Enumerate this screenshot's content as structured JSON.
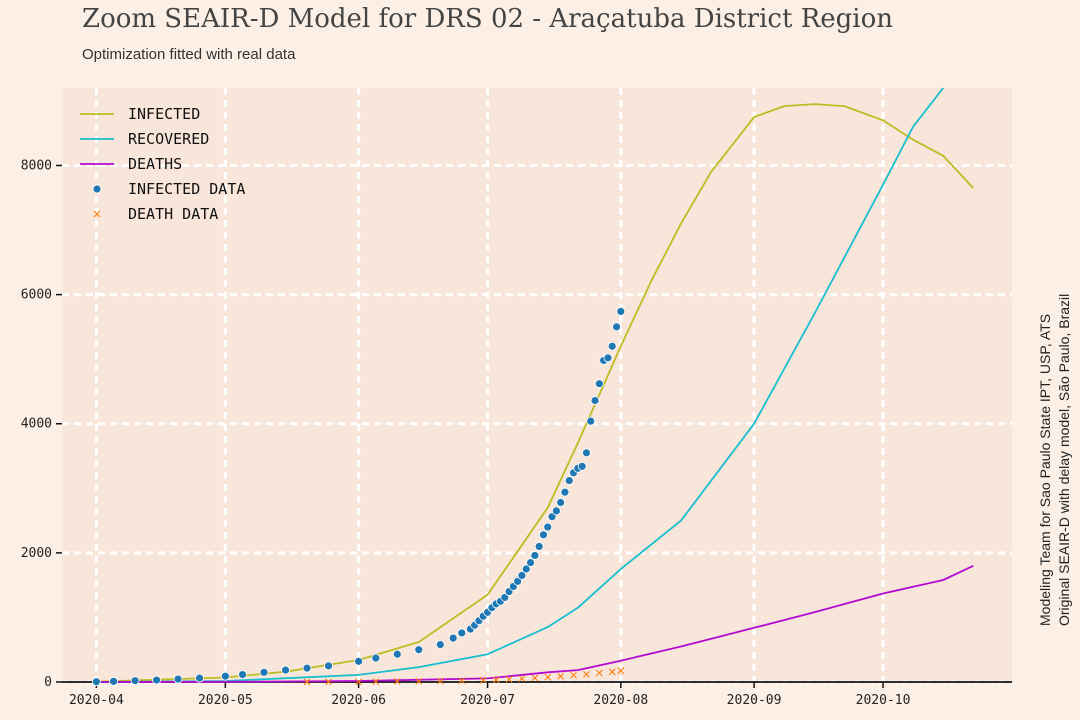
{
  "title": "Zoom SEAIR-D Model for DRS 02 - Araçatuba District Region",
  "subtitle": "Optimization fitted with real data",
  "side_note": {
    "line1": "Modeling Team for Sao Paulo State IPT, USP, ATS",
    "line2": "Original SEAIR-D with delay model, São Paulo, Brazil"
  },
  "colors": {
    "background": "#fcf0e6",
    "plot_background": "#f9e6da",
    "infected": "#bcbd22",
    "recovered": "#17becf",
    "deaths": "#b40bd1",
    "infected_data": "#1f77b4",
    "death_data": "#ff7f0e"
  },
  "chart_data": {
    "type": "line",
    "title": "Zoom SEAIR-D Model for DRS 02 - Araçatuba District Region",
    "xlabel": "",
    "ylabel": "",
    "xlim": [
      "2020-03-24",
      "2020-10-31"
    ],
    "ylim": [
      0,
      9200
    ],
    "grid": true,
    "legend_position": "top-left",
    "x_ticks": [
      "2020-04",
      "2020-05",
      "2020-06",
      "2020-07",
      "2020-08",
      "2020-09",
      "2020-10"
    ],
    "x_tick_dates": [
      "2020-04-01",
      "2020-05-01",
      "2020-06-01",
      "2020-07-01",
      "2020-08-01",
      "2020-09-01",
      "2020-10-01"
    ],
    "y_ticks": [
      0,
      2000,
      4000,
      6000,
      8000
    ],
    "series": [
      {
        "name": "Infected",
        "kind": "line",
        "color_key": "infected",
        "points": [
          [
            "2020-04-01",
            5
          ],
          [
            "2020-05-01",
            70
          ],
          [
            "2020-05-15",
            160
          ],
          [
            "2020-06-01",
            340
          ],
          [
            "2020-06-15",
            620
          ],
          [
            "2020-07-01",
            1350
          ],
          [
            "2020-07-15",
            2700
          ],
          [
            "2020-07-22",
            3700
          ],
          [
            "2020-08-01",
            5200
          ],
          [
            "2020-08-08",
            6200
          ],
          [
            "2020-08-15",
            7100
          ],
          [
            "2020-08-22",
            7900
          ],
          [
            "2020-09-01",
            8750
          ],
          [
            "2020-09-08",
            8920
          ],
          [
            "2020-09-15",
            8950
          ],
          [
            "2020-09-22",
            8920
          ],
          [
            "2020-10-01",
            8700
          ],
          [
            "2020-10-08",
            8400
          ],
          [
            "2020-10-15",
            8150
          ],
          [
            "2020-10-22",
            7650
          ]
        ]
      },
      {
        "name": "Recovered",
        "kind": "line",
        "color_key": "recovered",
        "points": [
          [
            "2020-04-01",
            0
          ],
          [
            "2020-05-01",
            15
          ],
          [
            "2020-06-01",
            110
          ],
          [
            "2020-06-15",
            230
          ],
          [
            "2020-07-01",
            430
          ],
          [
            "2020-07-15",
            850
          ],
          [
            "2020-07-22",
            1150
          ],
          [
            "2020-08-01",
            1750
          ],
          [
            "2020-08-15",
            2500
          ],
          [
            "2020-09-01",
            4000
          ],
          [
            "2020-09-15",
            5700
          ],
          [
            "2020-10-01",
            7700
          ],
          [
            "2020-10-08",
            8600
          ],
          [
            "2020-10-15",
            9350
          ]
        ]
      },
      {
        "name": "Deaths",
        "kind": "line",
        "color_key": "deaths",
        "points": [
          [
            "2020-04-01",
            0
          ],
          [
            "2020-05-01",
            3
          ],
          [
            "2020-06-01",
            15
          ],
          [
            "2020-07-01",
            55
          ],
          [
            "2020-07-15",
            150
          ],
          [
            "2020-07-22",
            185
          ],
          [
            "2020-08-01",
            330
          ],
          [
            "2020-08-15",
            550
          ],
          [
            "2020-09-01",
            840
          ],
          [
            "2020-09-15",
            1080
          ],
          [
            "2020-10-01",
            1370
          ],
          [
            "2020-10-15",
            1580
          ],
          [
            "2020-10-22",
            1800
          ]
        ]
      },
      {
        "name": "Infected Data",
        "kind": "scatter",
        "marker": "circle",
        "color_key": "infected_data",
        "points": [
          [
            "2020-04-01",
            5
          ],
          [
            "2020-04-05",
            10
          ],
          [
            "2020-04-10",
            20
          ],
          [
            "2020-04-15",
            30
          ],
          [
            "2020-04-20",
            45
          ],
          [
            "2020-04-25",
            60
          ],
          [
            "2020-05-01",
            90
          ],
          [
            "2020-05-05",
            115
          ],
          [
            "2020-05-10",
            150
          ],
          [
            "2020-05-15",
            185
          ],
          [
            "2020-05-20",
            215
          ],
          [
            "2020-05-25",
            250
          ],
          [
            "2020-06-01",
            320
          ],
          [
            "2020-06-05",
            370
          ],
          [
            "2020-06-10",
            430
          ],
          [
            "2020-06-15",
            500
          ],
          [
            "2020-06-20",
            580
          ],
          [
            "2020-06-23",
            680
          ],
          [
            "2020-06-25",
            760
          ],
          [
            "2020-06-27",
            820
          ],
          [
            "2020-06-28",
            880
          ],
          [
            "2020-06-29",
            950
          ],
          [
            "2020-06-30",
            1020
          ],
          [
            "2020-07-01",
            1080
          ],
          [
            "2020-07-02",
            1150
          ],
          [
            "2020-07-03",
            1210
          ],
          [
            "2020-07-04",
            1250
          ],
          [
            "2020-07-05",
            1310
          ],
          [
            "2020-07-06",
            1400
          ],
          [
            "2020-07-07",
            1480
          ],
          [
            "2020-07-08",
            1560
          ],
          [
            "2020-07-09",
            1650
          ],
          [
            "2020-07-10",
            1750
          ],
          [
            "2020-07-11",
            1850
          ],
          [
            "2020-07-12",
            1960
          ],
          [
            "2020-07-13",
            2100
          ],
          [
            "2020-07-14",
            2280
          ],
          [
            "2020-07-15",
            2400
          ],
          [
            "2020-07-16",
            2560
          ],
          [
            "2020-07-17",
            2650
          ],
          [
            "2020-07-18",
            2780
          ],
          [
            "2020-07-19",
            2940
          ],
          [
            "2020-07-20",
            3120
          ],
          [
            "2020-07-21",
            3240
          ],
          [
            "2020-07-22",
            3310
          ],
          [
            "2020-07-23",
            3340
          ],
          [
            "2020-07-24",
            3550
          ],
          [
            "2020-07-25",
            4040
          ],
          [
            "2020-07-26",
            4360
          ],
          [
            "2020-07-27",
            4620
          ],
          [
            "2020-07-28",
            4980
          ],
          [
            "2020-07-29",
            5020
          ],
          [
            "2020-07-30",
            5200
          ],
          [
            "2020-07-31",
            5500
          ],
          [
            "2020-08-01",
            5740
          ]
        ]
      },
      {
        "name": "Death Data",
        "kind": "scatter",
        "marker": "x",
        "color_key": "death_data",
        "points": [
          [
            "2020-05-20",
            1
          ],
          [
            "2020-05-25",
            2
          ],
          [
            "2020-06-01",
            4
          ],
          [
            "2020-06-05",
            6
          ],
          [
            "2020-06-10",
            9
          ],
          [
            "2020-06-15",
            12
          ],
          [
            "2020-06-20",
            16
          ],
          [
            "2020-06-25",
            21
          ],
          [
            "2020-06-30",
            27
          ],
          [
            "2020-07-03",
            34
          ],
          [
            "2020-07-06",
            42
          ],
          [
            "2020-07-09",
            52
          ],
          [
            "2020-07-12",
            62
          ],
          [
            "2020-07-15",
            74
          ],
          [
            "2020-07-18",
            88
          ],
          [
            "2020-07-21",
            104
          ],
          [
            "2020-07-24",
            120
          ],
          [
            "2020-07-27",
            140
          ],
          [
            "2020-07-30",
            158
          ],
          [
            "2020-08-01",
            175
          ]
        ]
      }
    ]
  }
}
